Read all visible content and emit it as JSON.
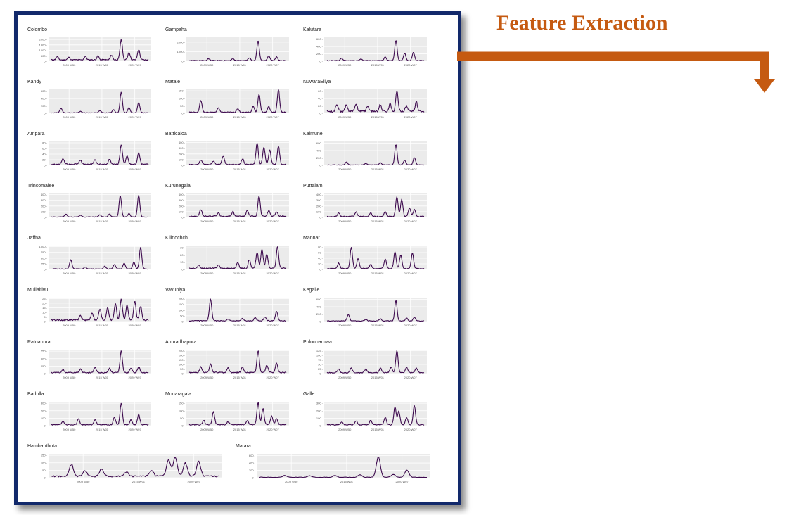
{
  "heading": "Feature Extraction",
  "colors": {
    "frame": "#12296b",
    "line": "#3d0a4e",
    "accent": "#c55a11",
    "panel_bg": "#ebebeb",
    "grid": "#ffffff"
  },
  "chart_data": [
    {
      "type": "line",
      "title": "Colombo",
      "yticks": [
        "0",
        "500",
        "1000",
        "1500",
        "2000"
      ],
      "xticks": [
        "2009 W50",
        "2015 W01",
        "2020 W07"
      ],
      "ylim": [
        0,
        2200
      ],
      "peaks": [
        [
          0.06,
          300
        ],
        [
          0.18,
          250
        ],
        [
          0.35,
          320
        ],
        [
          0.48,
          350
        ],
        [
          0.62,
          450
        ],
        [
          0.72,
          1900
        ],
        [
          0.8,
          700
        ],
        [
          0.9,
          950
        ]
      ],
      "base": 150
    },
    {
      "type": "line",
      "title": "Gampaha",
      "yticks": [
        "0",
        "1000",
        "2000"
      ],
      "xticks": [
        "2009 W50",
        "2015 W01",
        "2020 W07"
      ],
      "ylim": [
        0,
        2500
      ],
      "peaks": [
        [
          0.2,
          200
        ],
        [
          0.45,
          250
        ],
        [
          0.62,
          300
        ],
        [
          0.71,
          2100
        ],
        [
          0.82,
          500
        ],
        [
          0.9,
          400
        ]
      ],
      "base": 80
    },
    {
      "type": "line",
      "title": "Kalutara",
      "yticks": [
        "0",
        "200",
        "400",
        "600"
      ],
      "xticks": [
        "2009 W50",
        "2015 W01",
        "2020 W07"
      ],
      "ylim": [
        0,
        650
      ],
      "peaks": [
        [
          0.15,
          60
        ],
        [
          0.35,
          50
        ],
        [
          0.6,
          100
        ],
        [
          0.71,
          560
        ],
        [
          0.8,
          200
        ],
        [
          0.89,
          230
        ]
      ],
      "base": 20
    },
    {
      "type": "line",
      "title": "Kandy",
      "yticks": [
        "0",
        "200",
        "400",
        "600"
      ],
      "xticks": [
        "2009 W50",
        "2015 W01",
        "2020 W07"
      ],
      "ylim": [
        0,
        650
      ],
      "peaks": [
        [
          0.1,
          120
        ],
        [
          0.3,
          40
        ],
        [
          0.5,
          60
        ],
        [
          0.64,
          90
        ],
        [
          0.72,
          560
        ],
        [
          0.8,
          140
        ],
        [
          0.9,
          280
        ]
      ],
      "base": 15
    },
    {
      "type": "line",
      "title": "Matale",
      "yticks": [
        "0",
        "50",
        "100",
        "150"
      ],
      "xticks": [
        "2009 W50",
        "2015 W01",
        "2020 W07"
      ],
      "ylim": [
        0,
        160
      ],
      "peaks": [
        [
          0.12,
          80
        ],
        [
          0.3,
          30
        ],
        [
          0.5,
          25
        ],
        [
          0.66,
          40
        ],
        [
          0.72,
          120
        ],
        [
          0.82,
          40
        ],
        [
          0.92,
          150
        ]
      ],
      "base": 8
    },
    {
      "type": "line",
      "title": "NuwaraEliya",
      "yticks": [
        "0",
        "20",
        "40",
        "60"
      ],
      "xticks": [
        "2009 W50",
        "2015 W01",
        "2020 W07"
      ],
      "ylim": [
        0,
        65
      ],
      "peaks": [
        [
          0.1,
          20
        ],
        [
          0.2,
          18
        ],
        [
          0.3,
          20
        ],
        [
          0.42,
          15
        ],
        [
          0.55,
          18
        ],
        [
          0.65,
          20
        ],
        [
          0.72,
          55
        ],
        [
          0.82,
          15
        ],
        [
          0.92,
          25
        ]
      ],
      "base": 7
    },
    {
      "type": "line",
      "title": "Ampara",
      "yticks": [
        "0",
        "20",
        "40",
        "60",
        "80"
      ],
      "xticks": [
        "2009 W50",
        "2015 W01",
        "2020 W07"
      ],
      "ylim": [
        0,
        85
      ],
      "peaks": [
        [
          0.12,
          20
        ],
        [
          0.3,
          15
        ],
        [
          0.45,
          15
        ],
        [
          0.6,
          18
        ],
        [
          0.72,
          70
        ],
        [
          0.78,
          30
        ],
        [
          0.9,
          40
        ]
      ],
      "base": 5
    },
    {
      "type": "line",
      "title": "Batticaloa",
      "yticks": [
        "0",
        "100",
        "200",
        "300",
        "400"
      ],
      "xticks": [
        "2009 W50",
        "2015 W01",
        "2020 W07"
      ],
      "ylim": [
        0,
        420
      ],
      "peaks": [
        [
          0.12,
          80
        ],
        [
          0.25,
          60
        ],
        [
          0.35,
          150
        ],
        [
          0.55,
          100
        ],
        [
          0.7,
          380
        ],
        [
          0.77,
          300
        ],
        [
          0.83,
          250
        ],
        [
          0.92,
          320
        ]
      ],
      "base": 20
    },
    {
      "type": "line",
      "title": "Kalmune",
      "yticks": [
        "0",
        "200",
        "400",
        "600"
      ],
      "xticks": [
        "2009 W50",
        "2015 W01",
        "2020 W07"
      ],
      "ylim": [
        0,
        650
      ],
      "peaks": [
        [
          0.2,
          80
        ],
        [
          0.4,
          40
        ],
        [
          0.55,
          60
        ],
        [
          0.71,
          560
        ],
        [
          0.8,
          130
        ],
        [
          0.9,
          200
        ]
      ],
      "base": 15
    },
    {
      "type": "line",
      "title": "Trincomalee",
      "yticks": [
        "0",
        "100",
        "200",
        "300",
        "400"
      ],
      "xticks": [
        "2009 W50",
        "2015 W01",
        "2020 W07"
      ],
      "ylim": [
        0,
        420
      ],
      "peaks": [
        [
          0.15,
          50
        ],
        [
          0.3,
          30
        ],
        [
          0.5,
          40
        ],
        [
          0.6,
          50
        ],
        [
          0.71,
          380
        ],
        [
          0.8,
          60
        ],
        [
          0.9,
          380
        ]
      ],
      "base": 10
    },
    {
      "type": "line",
      "title": "Kurunegala",
      "yticks": [
        "0",
        "100",
        "200",
        "300",
        "400"
      ],
      "xticks": [
        "2009 W50",
        "2015 W01",
        "2020 W07"
      ],
      "ylim": [
        0,
        420
      ],
      "peaks": [
        [
          0.12,
          120
        ],
        [
          0.3,
          60
        ],
        [
          0.45,
          80
        ],
        [
          0.6,
          100
        ],
        [
          0.72,
          360
        ],
        [
          0.82,
          100
        ],
        [
          0.9,
          80
        ]
      ],
      "base": 25
    },
    {
      "type": "line",
      "title": "Puttalam",
      "yticks": [
        "0",
        "100",
        "200",
        "300",
        "400"
      ],
      "xticks": [
        "2009 W50",
        "2015 W01",
        "2020 W07"
      ],
      "ylim": [
        0,
        420
      ],
      "peaks": [
        [
          0.12,
          60
        ],
        [
          0.3,
          80
        ],
        [
          0.45,
          60
        ],
        [
          0.6,
          80
        ],
        [
          0.72,
          350
        ],
        [
          0.77,
          300
        ],
        [
          0.85,
          150
        ],
        [
          0.9,
          120
        ]
      ],
      "base": 20
    },
    {
      "type": "line",
      "title": "Jaffna",
      "yticks": [
        "0",
        "250",
        "500",
        "750",
        "1000"
      ],
      "xticks": [
        "2009 W50",
        "2015 W01",
        "2020 W07"
      ],
      "ylim": [
        0,
        1050
      ],
      "peaks": [
        [
          0.2,
          400
        ],
        [
          0.35,
          80
        ],
        [
          0.55,
          120
        ],
        [
          0.65,
          200
        ],
        [
          0.75,
          250
        ],
        [
          0.85,
          300
        ],
        [
          0.92,
          950
        ]
      ],
      "base": 30
    },
    {
      "type": "line",
      "title": "Kilinochchi",
      "yticks": [
        "0",
        "10",
        "20",
        "30"
      ],
      "xticks": [
        "2009 W50",
        "2015 W01",
        "2020 W07"
      ],
      "ylim": [
        0,
        33
      ],
      "peaks": [
        [
          0.1,
          4
        ],
        [
          0.3,
          5
        ],
        [
          0.5,
          8
        ],
        [
          0.62,
          12
        ],
        [
          0.7,
          22
        ],
        [
          0.75,
          26
        ],
        [
          0.8,
          20
        ],
        [
          0.91,
          30
        ]
      ],
      "base": 2
    },
    {
      "type": "line",
      "title": "Mannar",
      "yticks": [
        "0",
        "20",
        "40",
        "60",
        "80"
      ],
      "xticks": [
        "2009 W50",
        "2015 W01",
        "2020 W07"
      ],
      "ylim": [
        0,
        85
      ],
      "peaks": [
        [
          0.12,
          20
        ],
        [
          0.25,
          75
        ],
        [
          0.32,
          35
        ],
        [
          0.45,
          15
        ],
        [
          0.6,
          35
        ],
        [
          0.7,
          60
        ],
        [
          0.76,
          50
        ],
        [
          0.88,
          55
        ]
      ],
      "base": 4
    },
    {
      "type": "line",
      "title": "Mullaitivu",
      "yticks": [
        "0",
        "5",
        "10",
        "15",
        "20",
        "25"
      ],
      "xticks": [
        "2009 W50",
        "2015 W01",
        "2020 W07"
      ],
      "ylim": [
        0,
        26
      ],
      "peaks": [
        [
          0.3,
          5
        ],
        [
          0.42,
          8
        ],
        [
          0.5,
          12
        ],
        [
          0.58,
          14
        ],
        [
          0.66,
          18
        ],
        [
          0.72,
          23
        ],
        [
          0.78,
          16
        ],
        [
          0.86,
          20
        ],
        [
          0.92,
          15
        ]
      ],
      "base": 2
    },
    {
      "type": "line",
      "title": "Vavuniya",
      "yticks": [
        "0",
        "50",
        "100",
        "150",
        "200"
      ],
      "xticks": [
        "2009 W50",
        "2015 W01",
        "2020 W07"
      ],
      "ylim": [
        0,
        210
      ],
      "peaks": [
        [
          0.22,
          190
        ],
        [
          0.4,
          15
        ],
        [
          0.55,
          20
        ],
        [
          0.68,
          30
        ],
        [
          0.78,
          35
        ],
        [
          0.9,
          80
        ]
      ],
      "base": 8
    },
    {
      "type": "line",
      "title": "Kegalle",
      "yticks": [
        "0",
        "200",
        "400",
        "600"
      ],
      "xticks": [
        "2009 W50",
        "2015 W01",
        "2020 W07"
      ],
      "ylim": [
        0,
        650
      ],
      "peaks": [
        [
          0.22,
          180
        ],
        [
          0.4,
          40
        ],
        [
          0.55,
          60
        ],
        [
          0.71,
          560
        ],
        [
          0.82,
          80
        ],
        [
          0.9,
          100
        ]
      ],
      "base": 20
    },
    {
      "type": "line",
      "title": "Ratnapura",
      "yticks": [
        "0",
        "250",
        "500",
        "750"
      ],
      "xticks": [
        "2009 W50",
        "2015 W01",
        "2020 W07"
      ],
      "ylim": [
        0,
        800
      ],
      "peaks": [
        [
          0.12,
          100
        ],
        [
          0.3,
          120
        ],
        [
          0.45,
          180
        ],
        [
          0.6,
          150
        ],
        [
          0.72,
          720
        ],
        [
          0.82,
          150
        ],
        [
          0.9,
          200
        ]
      ],
      "base": 40
    },
    {
      "type": "line",
      "title": "Anuradhapura",
      "yticks": [
        "0",
        "50",
        "100",
        "150",
        "200",
        "250"
      ],
      "xticks": [
        "2009 W50",
        "2015 W01",
        "2020 W07"
      ],
      "ylim": [
        0,
        260
      ],
      "peaks": [
        [
          0.12,
          60
        ],
        [
          0.22,
          90
        ],
        [
          0.4,
          50
        ],
        [
          0.55,
          60
        ],
        [
          0.71,
          240
        ],
        [
          0.8,
          80
        ],
        [
          0.9,
          100
        ]
      ],
      "base": 15
    },
    {
      "type": "line",
      "title": "Polonnaruwa",
      "yticks": [
        "0",
        "25",
        "50",
        "75",
        "100",
        "125"
      ],
      "xticks": [
        "2009 W50",
        "2015 W01",
        "2020 W07"
      ],
      "ylim": [
        0,
        130
      ],
      "peaks": [
        [
          0.12,
          20
        ],
        [
          0.25,
          25
        ],
        [
          0.4,
          20
        ],
        [
          0.55,
          25
        ],
        [
          0.66,
          30
        ],
        [
          0.72,
          120
        ],
        [
          0.82,
          30
        ],
        [
          0.92,
          25
        ]
      ],
      "base": 6
    },
    {
      "type": "line",
      "title": "Badulla",
      "yticks": [
        "0",
        "100",
        "200",
        "300"
      ],
      "xticks": [
        "2009 W50",
        "2015 W01",
        "2020 W07"
      ],
      "ylim": [
        0,
        320
      ],
      "peaks": [
        [
          0.12,
          50
        ],
        [
          0.28,
          80
        ],
        [
          0.45,
          70
        ],
        [
          0.65,
          100
        ],
        [
          0.72,
          290
        ],
        [
          0.82,
          70
        ],
        [
          0.9,
          140
        ]
      ],
      "base": 15
    },
    {
      "type": "line",
      "title": "Monaragala",
      "yticks": [
        "0",
        "50",
        "100",
        "150"
      ],
      "xticks": [
        "2009 W50",
        "2015 W01",
        "2020 W07"
      ],
      "ylim": [
        0,
        160
      ],
      "peaks": [
        [
          0.15,
          30
        ],
        [
          0.25,
          90
        ],
        [
          0.4,
          20
        ],
        [
          0.6,
          30
        ],
        [
          0.71,
          150
        ],
        [
          0.76,
          110
        ],
        [
          0.85,
          60
        ],
        [
          0.9,
          40
        ]
      ],
      "base": 8
    },
    {
      "type": "line",
      "title": "Galle",
      "yticks": [
        "0",
        "100",
        "200",
        "300"
      ],
      "xticks": [
        "2009 W50",
        "2015 W01",
        "2020 W07"
      ],
      "ylim": [
        0,
        320
      ],
      "peaks": [
        [
          0.15,
          40
        ],
        [
          0.3,
          50
        ],
        [
          0.45,
          60
        ],
        [
          0.6,
          100
        ],
        [
          0.7,
          240
        ],
        [
          0.74,
          180
        ],
        [
          0.82,
          100
        ],
        [
          0.9,
          260
        ]
      ],
      "base": 15
    },
    {
      "type": "line",
      "title": "Hambanthota",
      "yticks": [
        "0",
        "50",
        "100",
        "150"
      ],
      "xticks": [
        "2009 W50",
        "2015 W01",
        "2020 W07"
      ],
      "ylim": [
        0,
        160
      ],
      "peaks": [
        [
          0.12,
          80
        ],
        [
          0.2,
          40
        ],
        [
          0.3,
          50
        ],
        [
          0.45,
          30
        ],
        [
          0.6,
          40
        ],
        [
          0.7,
          110
        ],
        [
          0.74,
          130
        ],
        [
          0.8,
          90
        ],
        [
          0.88,
          100
        ]
      ],
      "base": 12
    },
    {
      "type": "line",
      "title": "Matara",
      "yticks": [
        "0",
        "200",
        "400",
        "600"
      ],
      "xticks": [
        "2009 W50",
        "2015 W01",
        "2020 W07"
      ],
      "ylim": [
        0,
        650
      ],
      "peaks": [
        [
          0.15,
          50
        ],
        [
          0.3,
          40
        ],
        [
          0.45,
          50
        ],
        [
          0.6,
          70
        ],
        [
          0.71,
          560
        ],
        [
          0.8,
          80
        ],
        [
          0.88,
          200
        ]
      ],
      "base": 15
    }
  ]
}
